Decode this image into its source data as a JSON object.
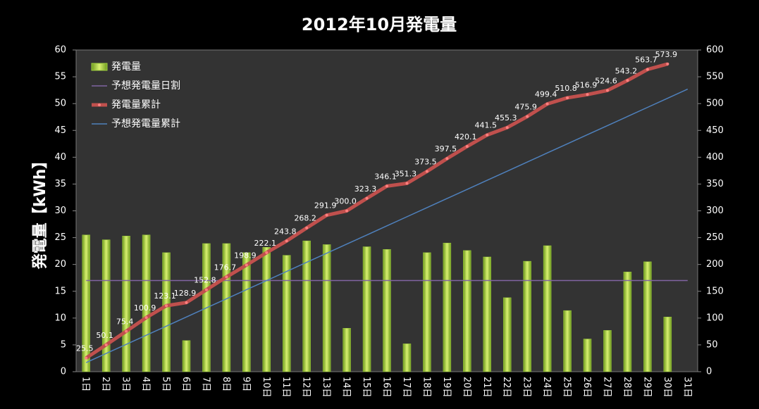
{
  "chart_data": {
    "type": "bar",
    "title": "2012年10月発電量",
    "ylabel": "発電量【kWh】",
    "categories": [
      "1日",
      "2日",
      "3日",
      "4日",
      "5日",
      "6日",
      "7日",
      "8日",
      "9日",
      "10日",
      "11日",
      "12日",
      "13日",
      "14日",
      "15日",
      "16日",
      "17日",
      "18日",
      "19日",
      "20日",
      "21日",
      "22日",
      "23日",
      "24日",
      "25日",
      "26日",
      "27日",
      "28日",
      "29日",
      "30日",
      "31日"
    ],
    "ylim": [
      0,
      60
    ],
    "yticks": [
      0,
      5,
      10,
      15,
      20,
      25,
      30,
      35,
      40,
      45,
      50,
      55,
      60
    ],
    "y2lim": [
      0,
      600
    ],
    "y2ticks": [
      0,
      50,
      100,
      150,
      200,
      250,
      300,
      350,
      400,
      450,
      500,
      550,
      600
    ],
    "legend": "top-left",
    "series": [
      {
        "name": "発電量",
        "type": "bar",
        "color": "#9ccc3c",
        "axis": "y",
        "values": [
          25.5,
          24.6,
          25.3,
          25.5,
          22.2,
          5.8,
          23.9,
          23.9,
          22.2,
          23.2,
          21.7,
          24.4,
          23.7,
          8.1,
          23.3,
          22.8,
          5.2,
          22.2,
          24.0,
          22.6,
          21.4,
          13.8,
          20.6,
          23.5,
          11.4,
          6.1,
          7.7,
          18.6,
          20.5,
          10.2,
          null
        ]
      },
      {
        "name": "予想発電量日割",
        "type": "line",
        "color": "#8064a2",
        "axis": "y",
        "values": [
          17,
          17,
          17,
          17,
          17,
          17,
          17,
          17,
          17,
          17,
          17,
          17,
          17,
          17,
          17,
          17,
          17,
          17,
          17,
          17,
          17,
          17,
          17,
          17,
          17,
          17,
          17,
          17,
          17,
          17,
          17
        ]
      },
      {
        "name": "発電量累計",
        "type": "line",
        "color": "#c0504d",
        "axis": "y2",
        "markers": true,
        "values": [
          25.5,
          50.1,
          75.4,
          100.9,
          123.1,
          128.9,
          152.8,
          176.7,
          198.9,
          222.1,
          243.8,
          268.2,
          291.9,
          300.0,
          323.3,
          346.1,
          351.3,
          373.5,
          397.5,
          420.1,
          441.5,
          455.3,
          475.9,
          499.4,
          510.8,
          516.9,
          524.6,
          543.2,
          563.7,
          573.9,
          null
        ],
        "value_labels": [
          "25.5",
          "50.1",
          "75.4",
          "100.9",
          "123.1",
          "128.9",
          "152.8",
          "176.7",
          "198.9",
          "222.1",
          "243.8",
          "268.2",
          "291.9",
          "300.0",
          "323.3",
          "346.1",
          "351.3",
          "373.5",
          "397.5",
          "420.1",
          "441.5",
          "455.3",
          "475.9",
          "499.4",
          "510.8",
          "516.9",
          "524.6",
          "543.2",
          "563.7",
          "573.9",
          null
        ]
      },
      {
        "name": "予想発電量累計",
        "type": "line",
        "color": "#4f81bd",
        "axis": "y2",
        "values": [
          17,
          34,
          51,
          68,
          85,
          102,
          119,
          136,
          153,
          170,
          187,
          204,
          221,
          238,
          255,
          272,
          289,
          306,
          323,
          340,
          357,
          374,
          391,
          408,
          425,
          442,
          459,
          476,
          493,
          510,
          527
        ]
      }
    ]
  }
}
